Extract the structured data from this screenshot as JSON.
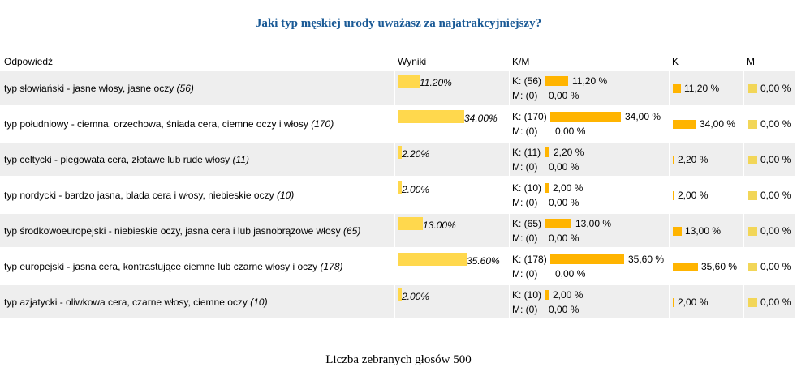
{
  "title": "Jaki typ męskiej urody uważasz za najatrakcyjniejszy?",
  "headers": {
    "answer": "Odpowiedź",
    "results": "Wyniki",
    "km": "K/M",
    "k": "K",
    "m": "M"
  },
  "chart_data": {
    "type": "bar",
    "title": "Jaki typ męskiej urody uważasz za najatrakcyjniejszy?",
    "categories": [
      "typ słowiański - jasne włosy, jasne oczy",
      "typ południowy - ciemna, orzechowa, śniada cera, ciemne oczy i włosy",
      "typ celtycki - piegowata cera, złotawe lub rude włosy",
      "typ nordycki - bardzo jasna, blada cera i włosy, niebieskie oczy",
      "typ środkowoeuropejski - niebieskie oczy, jasna cera i lub jasnobrązowe włosy",
      "typ europejski - jasna cera, kontrastujące ciemne lub czarne włosy i oczy",
      "typ azjatycki - oliwkowa cera, czarne włosy, ciemne oczy"
    ],
    "series": [
      {
        "name": "Wyniki",
        "values": [
          11.2,
          34.0,
          2.2,
          2.0,
          13.0,
          35.6,
          2.0
        ]
      },
      {
        "name": "K",
        "values": [
          11.2,
          34.0,
          2.2,
          2.0,
          13.0,
          35.6,
          2.0
        ]
      },
      {
        "name": "M",
        "values": [
          0,
          0,
          0,
          0,
          0,
          0,
          0
        ]
      }
    ],
    "colors": {
      "results": "#ffd84d",
      "k": "#ffb400",
      "m": "#f2d658",
      "title": "#1a5a96",
      "row_shade": "#eeeeee"
    }
  },
  "rows": [
    {
      "label": "typ słowiański - jasne włosy, jasne oczy",
      "count": "(56)",
      "pct": 11.2,
      "pct_text": "11.20%",
      "k_label": "K: (56)",
      "k_pct": "11,20 %",
      "m_label": "M: (0)",
      "m_pct": "0,00 %",
      "k_col": "11,20 %",
      "m_col": "0,00 %"
    },
    {
      "label": "typ południowy - ciemna, orzechowa, śniada cera, ciemne oczy i włosy",
      "count": "(170)",
      "pct": 34.0,
      "pct_text": "34.00%",
      "k_label": "K: (170)",
      "k_pct": "34,00 %",
      "m_label": "M: (0)",
      "m_pct": "0,00 %",
      "k_col": "34,00 %",
      "m_col": "0,00 %"
    },
    {
      "label": "typ celtycki - piegowata cera, złotawe lub rude włosy",
      "count": "(11)",
      "pct": 2.2,
      "pct_text": "2.20%",
      "k_label": "K: (11)",
      "k_pct": "2,20 %",
      "m_label": "M: (0)",
      "m_pct": "0,00 %",
      "k_col": "2,20 %",
      "m_col": "0,00 %"
    },
    {
      "label": "typ nordycki - bardzo jasna, blada cera i włosy, niebieskie oczy",
      "count": "(10)",
      "pct": 2.0,
      "pct_text": "2.00%",
      "k_label": "K: (10)",
      "k_pct": "2,00 %",
      "m_label": "M: (0)",
      "m_pct": "0,00 %",
      "k_col": "2,00 %",
      "m_col": "0,00 %"
    },
    {
      "label": "typ środkowoeuropejski - niebieskie oczy, jasna cera i lub jasnobrązowe włosy",
      "count": "(65)",
      "pct": 13.0,
      "pct_text": "13.00%",
      "k_label": "K: (65)",
      "k_pct": "13,00 %",
      "m_label": "M: (0)",
      "m_pct": "0,00 %",
      "k_col": "13,00 %",
      "m_col": "0,00 %"
    },
    {
      "label": "typ europejski - jasna cera, kontrastujące ciemne lub czarne włosy i oczy",
      "count": "(178)",
      "pct": 35.6,
      "pct_text": "35.60%",
      "k_label": "K: (178)",
      "k_pct": "35,60 %",
      "m_label": "M: (0)",
      "m_pct": "0,00 %",
      "k_col": "35,60 %",
      "m_col": "0,00 %"
    },
    {
      "label": "typ azjatycki - oliwkowa cera, czarne włosy, ciemne oczy",
      "count": "(10)",
      "pct": 2.0,
      "pct_text": "2.00%",
      "k_label": "K: (10)",
      "k_pct": "2,00 %",
      "m_label": "M: (0)",
      "m_pct": "0,00 %",
      "k_col": "2,00 %",
      "m_col": "0,00 %"
    }
  ],
  "footer": "Liczba zebranych głosów 500"
}
